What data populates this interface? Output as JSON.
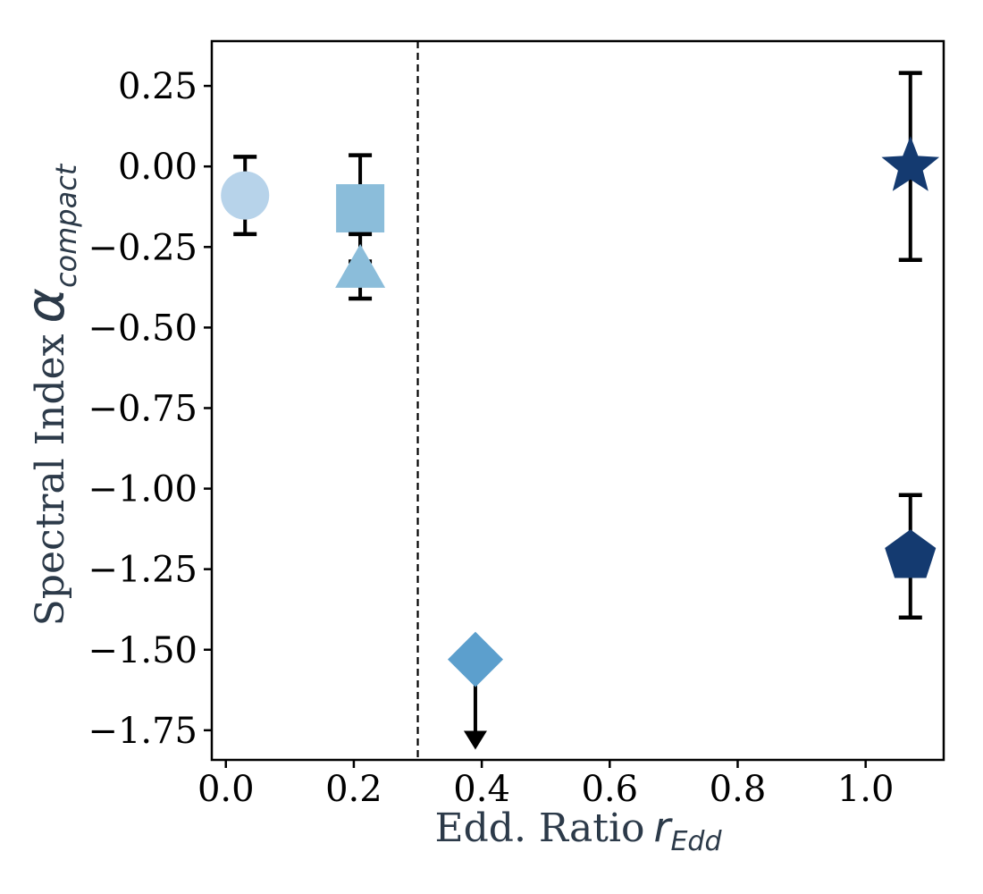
{
  "figure": {
    "background": "#ffffff",
    "label_color": "#2c3a49",
    "tick_label_color": "#000000",
    "axis_color": "#000000"
  },
  "chart_data": {
    "type": "scatter",
    "title": "",
    "grid": false,
    "legend": false,
    "xlabel": {
      "text": "Edd. Ratio",
      "symbol": "r",
      "subscript": "Edd"
    },
    "ylabel": {
      "text": "Spectral Index",
      "symbol": "α",
      "subscript": "compact"
    },
    "xlim": [
      -0.022,
      1.122
    ],
    "ylim": [
      -1.842,
      0.389
    ],
    "xticks": {
      "values": [
        0.0,
        0.2,
        0.4,
        0.6,
        0.8,
        1.0
      ],
      "labels": [
        "0.0",
        "0.2",
        "0.4",
        "0.6",
        "0.8",
        "1.0"
      ]
    },
    "yticks": {
      "values": [
        0.25,
        0.0,
        -0.25,
        -0.5,
        -0.75,
        -1.0,
        -1.25,
        -1.5,
        -1.75
      ],
      "labels": [
        "0.25",
        "0.00",
        "−0.25",
        "−0.50",
        "−0.75",
        "−1.00",
        "−1.25",
        "−1.50",
        "−1.75"
      ]
    },
    "vline": {
      "x": 0.3,
      "color": "#000000",
      "style": "dashed"
    },
    "errorbar": {
      "color": "#000000",
      "line_width": 4,
      "cap_half_width": 13,
      "cap_thickness": 4.5
    },
    "points": [
      {
        "name": "circle-point",
        "marker": "circle",
        "x": 0.03,
        "y": -0.09,
        "yerr": 0.12,
        "color": "#b7d3ea",
        "size": 54
      },
      {
        "name": "square-point",
        "marker": "square",
        "x": 0.21,
        "y": -0.13,
        "yerr": 0.165,
        "color": "#8bbdda",
        "size": 54
      },
      {
        "name": "triangle-point",
        "marker": "triangle",
        "x": 0.21,
        "y": -0.31,
        "yerr": 0.1,
        "color": "#8bbdda",
        "size": 54
      },
      {
        "name": "diamond-point",
        "marker": "diamond",
        "x": 0.39,
        "y": -1.53,
        "upper_limit": true,
        "arrow_tip_y": -1.81,
        "color": "#5c9fcd",
        "size": 62
      },
      {
        "name": "star-point",
        "marker": "star",
        "x": 1.07,
        "y": 0.0,
        "yerr": 0.29,
        "color": "#143a70",
        "size": 68
      },
      {
        "name": "pentagon-point",
        "marker": "pentagon",
        "x": 1.07,
        "y": -1.21,
        "yerr": 0.19,
        "color": "#143a70",
        "size": 60
      }
    ]
  }
}
